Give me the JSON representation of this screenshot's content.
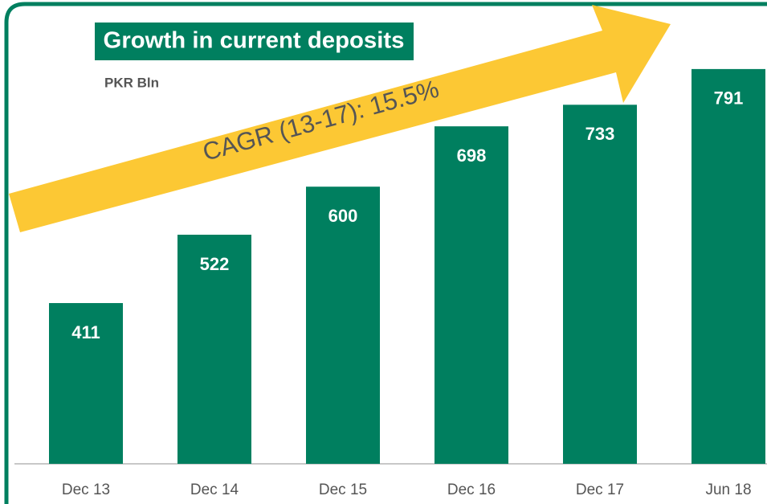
{
  "chart_data": {
    "type": "bar",
    "title": "Growth in current deposits",
    "subtitle": "PKR Bln",
    "annotation": "CAGR (13-17): 15.5%",
    "categories": [
      "Dec 13",
      "Dec 14",
      "Dec 15",
      "Dec 16",
      "Dec 17",
      "Jun 18"
    ],
    "values": [
      411,
      522,
      600,
      698,
      733,
      791
    ],
    "color": "#007f5f",
    "ylim": [
      150,
      800
    ]
  }
}
